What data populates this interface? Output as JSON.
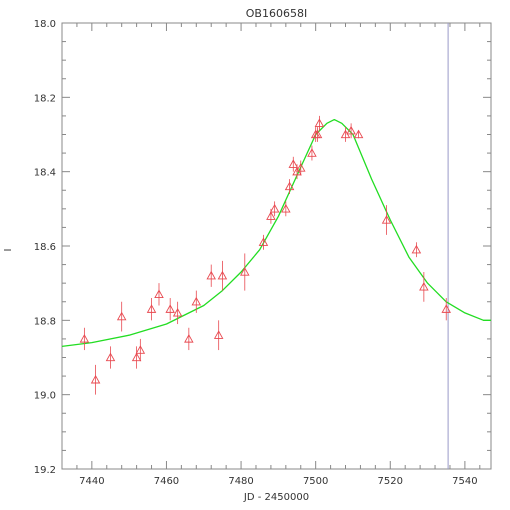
{
  "chart_data": {
    "type": "scatter",
    "title": "OB160658I",
    "xlabel": "JD - 2450000",
    "ylabel": "I",
    "xlim": [
      7432,
      7547
    ],
    "ylim": [
      18.0,
      19.2
    ],
    "y_inverted": true,
    "x_ticks": [
      "7440",
      "7460",
      "7480",
      "7500",
      "7520",
      "7540"
    ],
    "y_ticks": [
      "18.0",
      "18.2",
      "18.4",
      "18.6",
      "18.8",
      "19.0",
      "19.2"
    ],
    "x_tick_values": [
      7440,
      7460,
      7480,
      7500,
      7520,
      7540
    ],
    "y_tick_values": [
      18.0,
      18.2,
      18.4,
      18.6,
      18.8,
      19.0,
      19.2
    ],
    "vertical_line_x": 7535.5,
    "colors": {
      "data": "#e8484f",
      "model": "#22dd22",
      "axis": "#888888",
      "vline": "#9a9ac8"
    },
    "series": [
      {
        "kind": "points",
        "points": [
          {
            "x": 7438,
            "y": 18.85,
            "err": 0.03
          },
          {
            "x": 7441,
            "y": 18.96,
            "err": 0.04
          },
          {
            "x": 7445,
            "y": 18.9,
            "err": 0.03
          },
          {
            "x": 7448,
            "y": 18.79,
            "err": 0.04
          },
          {
            "x": 7452,
            "y": 18.9,
            "err": 0.03
          },
          {
            "x": 7453,
            "y": 18.88,
            "err": 0.03
          },
          {
            "x": 7456,
            "y": 18.77,
            "err": 0.03
          },
          {
            "x": 7458,
            "y": 18.73,
            "err": 0.03
          },
          {
            "x": 7461,
            "y": 18.77,
            "err": 0.03
          },
          {
            "x": 7463,
            "y": 18.78,
            "err": 0.03
          },
          {
            "x": 7466,
            "y": 18.85,
            "err": 0.03
          },
          {
            "x": 7468,
            "y": 18.75,
            "err": 0.03
          },
          {
            "x": 7472,
            "y": 18.68,
            "err": 0.03
          },
          {
            "x": 7474,
            "y": 18.84,
            "err": 0.04
          },
          {
            "x": 7475,
            "y": 18.68,
            "err": 0.04
          },
          {
            "x": 7481,
            "y": 18.67,
            "err": 0.05
          },
          {
            "x": 7486,
            "y": 18.59,
            "err": 0.02
          },
          {
            "x": 7488,
            "y": 18.52,
            "err": 0.02
          },
          {
            "x": 7489,
            "y": 18.5,
            "err": 0.02
          },
          {
            "x": 7492,
            "y": 18.5,
            "err": 0.02
          },
          {
            "x": 7493,
            "y": 18.44,
            "err": 0.02
          },
          {
            "x": 7494,
            "y": 18.38,
            "err": 0.02
          },
          {
            "x": 7495,
            "y": 18.4,
            "err": 0.02
          },
          {
            "x": 7496,
            "y": 18.39,
            "err": 0.02
          },
          {
            "x": 7499,
            "y": 18.35,
            "err": 0.02
          },
          {
            "x": 7500,
            "y": 18.3,
            "err": 0.02
          },
          {
            "x": 7500.5,
            "y": 18.3,
            "err": 0.02
          },
          {
            "x": 7501,
            "y": 18.27,
            "err": 0.02
          },
          {
            "x": 7508,
            "y": 18.3,
            "err": 0.02
          },
          {
            "x": 7509.5,
            "y": 18.29,
            "err": 0.02
          },
          {
            "x": 7511.5,
            "y": 18.3,
            "err": 0.01
          },
          {
            "x": 7519,
            "y": 18.53,
            "err": 0.04
          },
          {
            "x": 7527,
            "y": 18.61,
            "err": 0.02
          },
          {
            "x": 7529,
            "y": 18.71,
            "err": 0.04
          },
          {
            "x": 7535,
            "y": 18.77,
            "err": 0.03
          }
        ]
      },
      {
        "kind": "line",
        "x": [
          7432,
          7440,
          7450,
          7460,
          7470,
          7475,
          7480,
          7485,
          7490,
          7495,
          7500,
          7503,
          7505,
          7507,
          7510,
          7515,
          7520,
          7525,
          7530,
          7535,
          7540,
          7545,
          7547
        ],
        "y": [
          18.87,
          18.86,
          18.84,
          18.81,
          18.76,
          18.72,
          18.67,
          18.61,
          18.52,
          18.41,
          18.3,
          18.27,
          18.26,
          18.27,
          18.3,
          18.42,
          18.53,
          18.63,
          18.7,
          18.75,
          18.78,
          18.8,
          18.8
        ]
      }
    ]
  }
}
